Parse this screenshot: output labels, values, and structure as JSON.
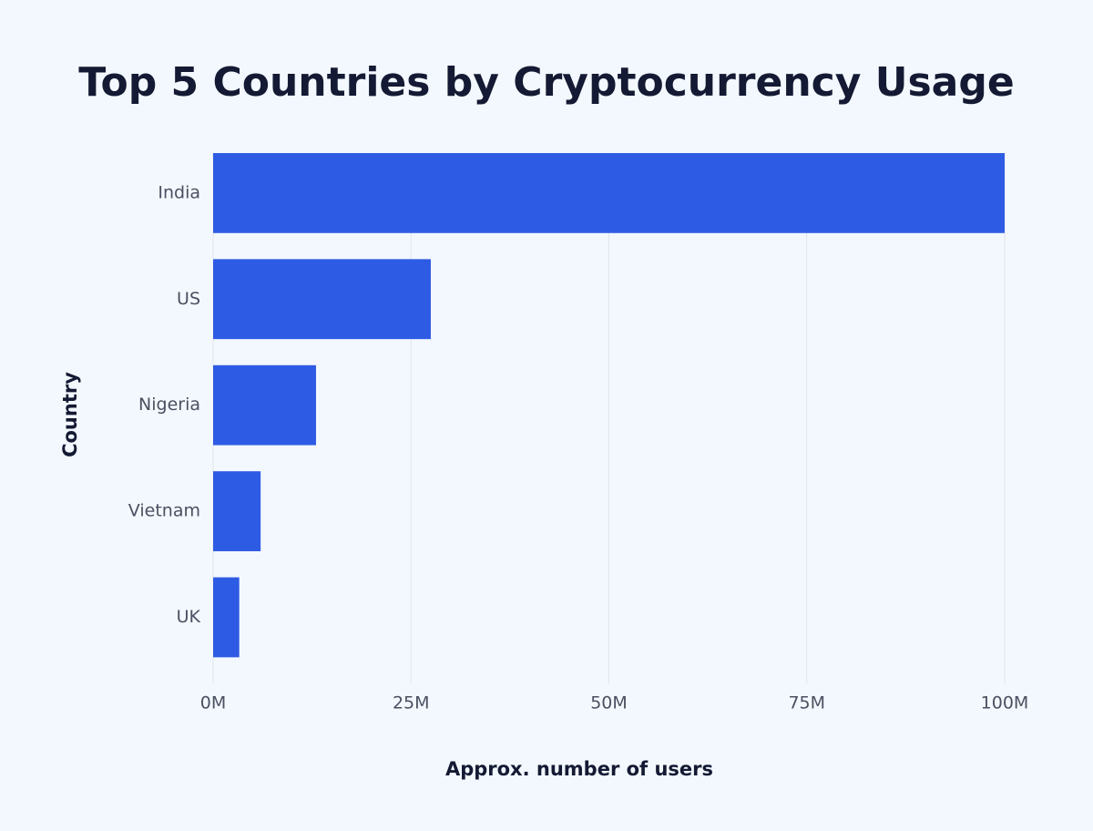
{
  "chart_data": {
    "type": "bar",
    "orientation": "horizontal",
    "title": "Top 5 Countries by Cryptocurrency Usage",
    "x_label": "Approx. number of users",
    "y_label": "Country",
    "categories": [
      "India",
      "US",
      "Nigeria",
      "Vietnam",
      "UK"
    ],
    "values": [
      100000000,
      27500000,
      13000000,
      6000000,
      3300000
    ],
    "color": "#2d5be3",
    "xlim": [
      0,
      100000000
    ],
    "xticks": [
      {
        "value": 0,
        "label": "0M"
      },
      {
        "value": 25000000,
        "label": "25M"
      },
      {
        "value": 50000000,
        "label": "50M"
      },
      {
        "value": 75000000,
        "label": "75M"
      },
      {
        "value": 100000000,
        "label": "100M"
      }
    ],
    "grid": true
  }
}
